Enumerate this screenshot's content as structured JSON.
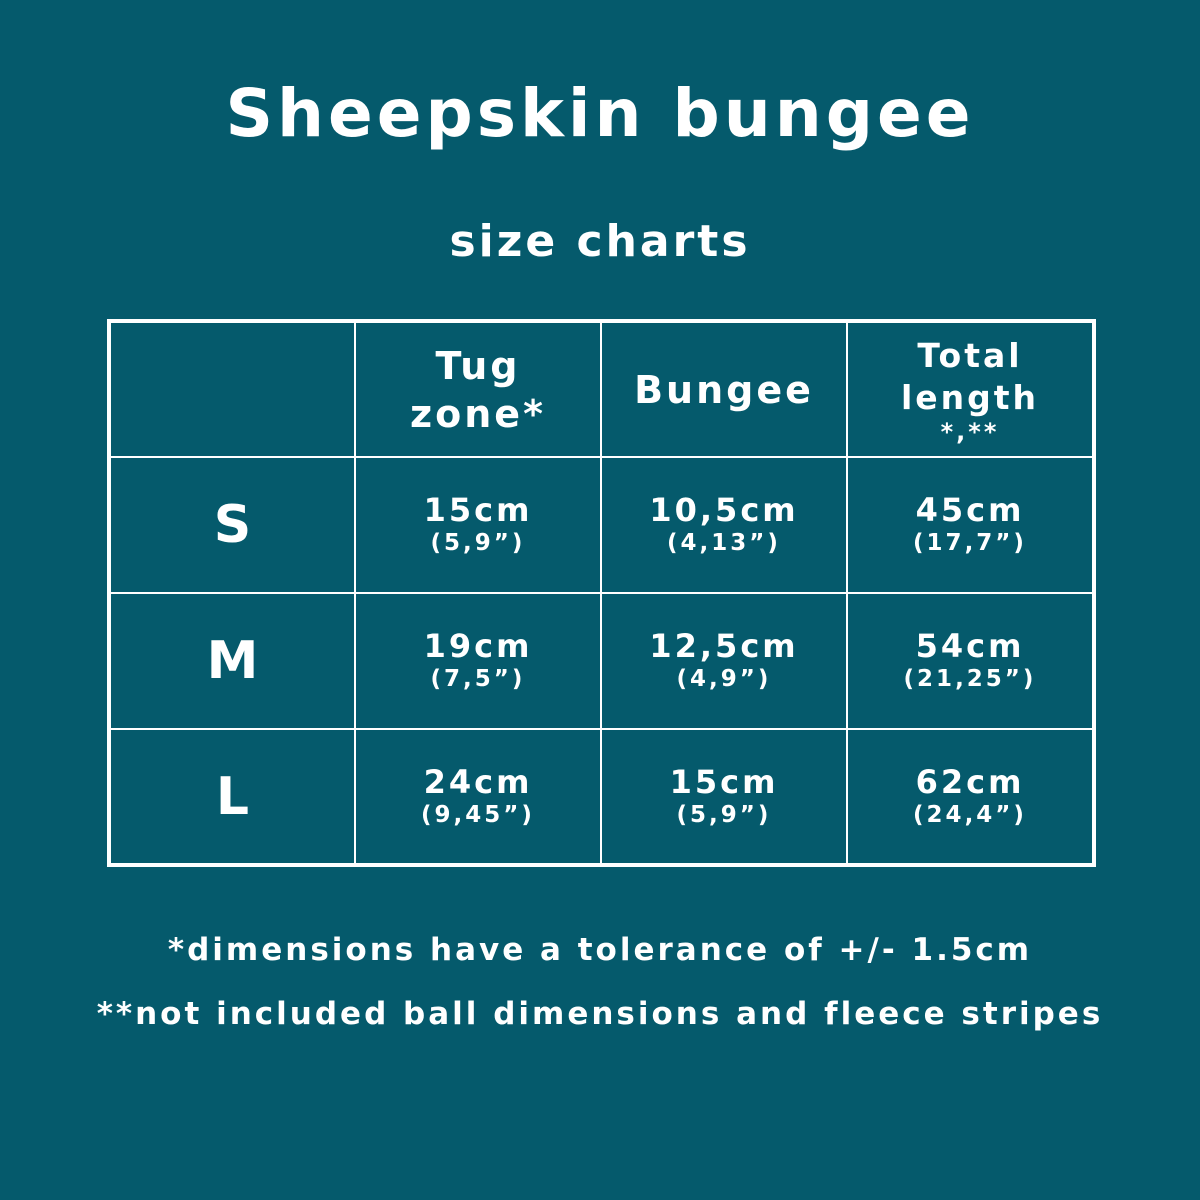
{
  "title": "Sheepskin bungee",
  "subtitle": "size charts",
  "table": {
    "headers": [
      "",
      "Tug zone*",
      "Bungee",
      {
        "label": "Total length",
        "mark": "*,**"
      }
    ],
    "rows": [
      {
        "size": "S",
        "cells": [
          {
            "cm": "15cm",
            "inch": "(5,9”)"
          },
          {
            "cm": "10,5cm",
            "inch": "(4,13”)"
          },
          {
            "cm": "45cm",
            "inch": "(17,7”)"
          }
        ]
      },
      {
        "size": "M",
        "cells": [
          {
            "cm": "19cm",
            "inch": "(7,5”)"
          },
          {
            "cm": "12,5cm",
            "inch": "(4,9”)"
          },
          {
            "cm": "54cm",
            "inch": "(21,25”)"
          }
        ]
      },
      {
        "size": "L",
        "cells": [
          {
            "cm": "24cm",
            "inch": "(9,45”)"
          },
          {
            "cm": "15cm",
            "inch": "(5,9”)"
          },
          {
            "cm": "62cm",
            "inch": "(24,4”)"
          }
        ]
      }
    ]
  },
  "notes": [
    "*dimensions have a tolerance of +/- 1.5cm",
    "**not included ball dimensions and fleece stripes"
  ],
  "colors": {
    "background": "#055a6c",
    "foreground": "#ffffff"
  }
}
